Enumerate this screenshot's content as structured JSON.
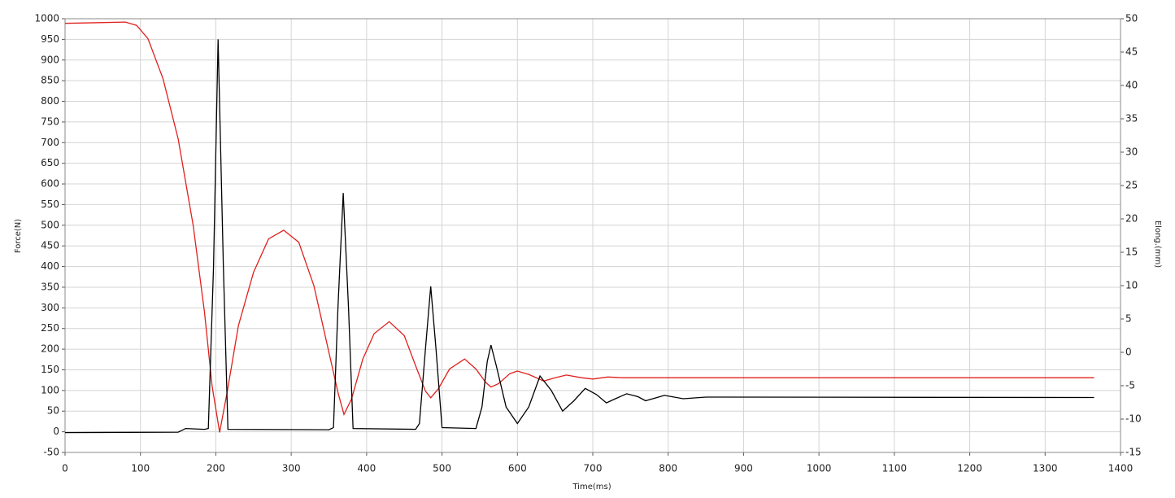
{
  "chart_data": {
    "type": "line",
    "xlabel": "Time(ms)",
    "ylabel": "Force(N)",
    "y2label": "Elong.(mm)",
    "xlim": [
      0,
      1400
    ],
    "xticks": [
      0,
      100,
      200,
      300,
      400,
      500,
      600,
      700,
      800,
      900,
      1000,
      1100,
      1200,
      1300,
      1400
    ],
    "ylim": [
      -50,
      1000
    ],
    "yticks": [
      -50,
      0,
      50,
      100,
      150,
      200,
      250,
      300,
      350,
      400,
      450,
      500,
      550,
      600,
      650,
      700,
      750,
      800,
      850,
      900,
      950,
      1000
    ],
    "y2lim": [
      -15,
      50
    ],
    "y2ticks": [
      -15,
      -10,
      -5,
      0,
      5,
      10,
      15,
      20,
      25,
      30,
      35,
      40,
      45,
      50
    ],
    "grid": true,
    "series": [
      {
        "color": "#e0201c",
        "axis": "y2",
        "x": [
          0,
          80,
          95,
          110,
          130,
          150,
          170,
          185,
          195,
          205,
          215,
          230,
          250,
          270,
          290,
          310,
          330,
          350,
          362,
          370,
          380,
          395,
          410,
          430,
          450,
          465,
          478,
          485,
          495,
          510,
          530,
          545,
          558,
          565,
          575,
          590,
          600,
          615,
          635,
          650,
          665,
          685,
          700,
          720,
          740,
          760,
          1365
        ],
        "values": [
          49.3,
          49.5,
          49,
          47,
          41,
          32,
          19,
          6,
          -5,
          -12,
          -6,
          4,
          12,
          17,
          18.3,
          16.5,
          10,
          0,
          -6,
          -9.3,
          -7,
          -1,
          2.8,
          4.6,
          2.5,
          -2,
          -5.8,
          -6.8,
          -5.5,
          -2.5,
          -1,
          -2.5,
          -4.5,
          -5.2,
          -4.7,
          -3.2,
          -2.8,
          -3.3,
          -4.3,
          -3.8,
          -3.4,
          -3.8,
          -4,
          -3.7,
          -3.8,
          -3.8,
          -3.8
        ]
      },
      {
        "color": "#000000",
        "x": [
          0,
          150,
          160,
          185,
          190,
          197,
          203,
          210,
          216,
          350,
          356,
          362,
          369,
          376,
          382,
          465,
          470,
          478,
          485,
          492,
          500,
          545,
          553,
          560,
          565,
          572,
          585,
          600,
          615,
          630,
          645,
          660,
          675,
          690,
          705,
          718,
          730,
          745,
          760,
          770,
          795,
          820,
          850,
          1365
        ],
        "values": [
          -2,
          -1,
          8,
          6,
          8,
          400,
          950,
          400,
          6,
          5,
          10,
          300,
          578,
          300,
          8,
          6,
          20,
          200,
          352,
          200,
          10,
          8,
          60,
          170,
          210,
          160,
          60,
          20,
          60,
          135,
          100,
          50,
          75,
          105,
          90,
          70,
          80,
          92,
          85,
          75,
          88,
          80,
          84,
          83
        ]
      }
    ]
  }
}
